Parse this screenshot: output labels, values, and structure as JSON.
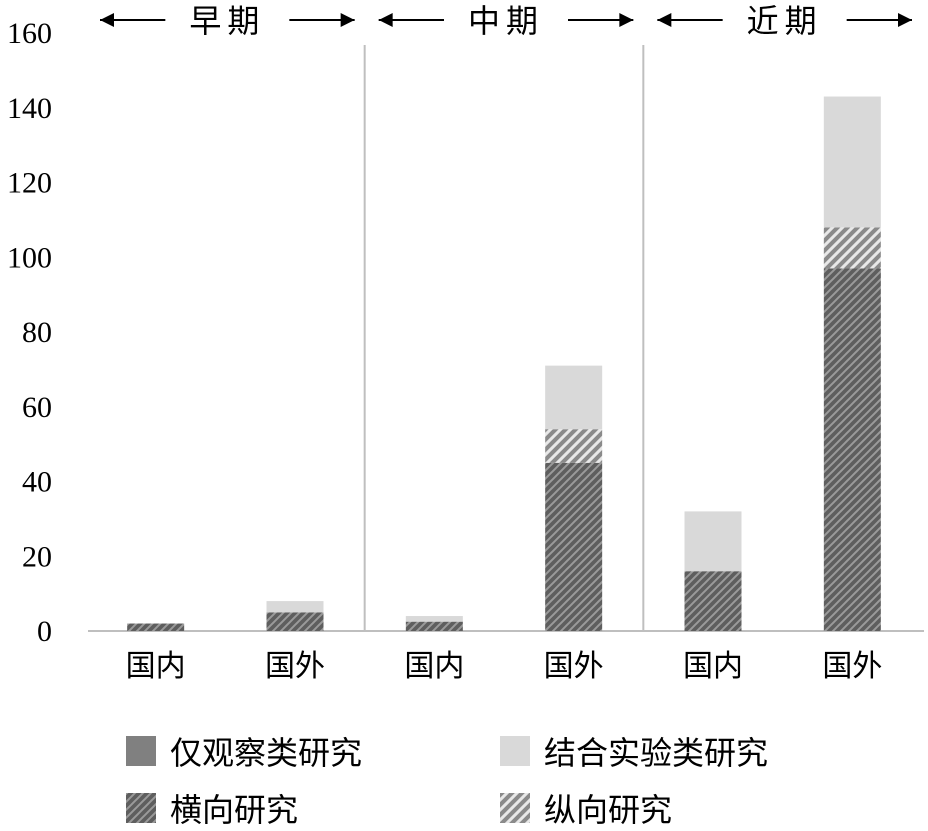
{
  "chart_data": {
    "type": "bar",
    "stacked": true,
    "categories": [
      "国内",
      "国外",
      "国内",
      "国外",
      "国内",
      "国外"
    ],
    "groups": [
      {
        "label": "早期",
        "span": [
          0,
          1
        ]
      },
      {
        "label": "中期",
        "span": [
          2,
          3
        ]
      },
      {
        "label": "近期",
        "span": [
          4,
          5
        ]
      }
    ],
    "series": [
      {
        "name": "仅观察类研究",
        "values": [
          0,
          0,
          0,
          0,
          0,
          0
        ],
        "color": "#808080",
        "pattern": "solid"
      },
      {
        "name": "横向研究",
        "values": [
          2,
          5,
          2.5,
          45,
          16,
          97
        ],
        "color": "#7a7a7a",
        "pattern": "dense-diagonal"
      },
      {
        "name": "纵向研究",
        "values": [
          0,
          0,
          0,
          9,
          0,
          11
        ],
        "color": "#9a9a9a",
        "pattern": "light-diagonal"
      },
      {
        "name": "结合实验类研究",
        "values": [
          0,
          3,
          1.5,
          17,
          16,
          35
        ],
        "color": "#d9d9d9",
        "pattern": "solid"
      }
    ],
    "ylim": [
      0,
      160
    ],
    "yticks": [
      0,
      20,
      40,
      60,
      80,
      100,
      120,
      140,
      160
    ],
    "xlabel": "",
    "ylabel": "",
    "legend_position": "bottom"
  }
}
